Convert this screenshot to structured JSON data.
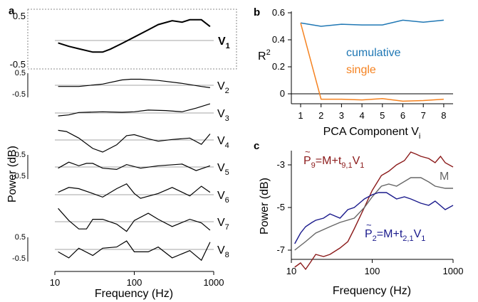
{
  "panels": {
    "a": {
      "label": "a",
      "ylabel": "Power (dB)",
      "xlabel": "Frequency (Hz)",
      "xticks": [
        "10",
        "100",
        "1000"
      ],
      "y_top_label": "0.5",
      "y_bottom_label": "-0.5"
    },
    "b": {
      "label": "b",
      "ylabel_main": "R",
      "ylabel_sup": "2",
      "xlabel_main": "PCA Component V",
      "xlabel_sub": "i",
      "yticks": [
        "0.6",
        "0.4",
        "0.2",
        "0"
      ],
      "xticks": [
        "1",
        "2",
        "3",
        "4",
        "5",
        "6",
        "7",
        "8"
      ]
    },
    "c": {
      "label": "c",
      "ylabel": "Power (dB)",
      "xlabel": "Frequency (Hz)",
      "yticks": [
        "-3",
        "-5",
        "-7"
      ],
      "xticks": [
        "10",
        "100",
        "1000"
      ],
      "annotation_p9": {
        "p": "P",
        "sub1": "9",
        "eq": "=M+t",
        "sub2": "9,1",
        "v": "V",
        "sub3": "1"
      },
      "annotation_m": "M",
      "annotation_p2": {
        "p": "P",
        "sub1": "2",
        "eq": "=M+t",
        "sub2": "2,1",
        "v": "V",
        "sub3": "1"
      }
    }
  },
  "colors": {
    "blue": "#1f77b4",
    "orange": "#f58220",
    "darkred": "#8b1a1a",
    "navy": "#1a1a8c",
    "gray": "#666666"
  },
  "chart_data": [
    {
      "type": "line",
      "panel": "a",
      "x_scale": "log",
      "xlim": [
        10,
        1000
      ],
      "ylim": [
        -0.5,
        0.5
      ],
      "series": [
        {
          "name": "V1",
          "name_main": "V",
          "name_sub": "1",
          "x": [
            11,
            15,
            20,
            30,
            40,
            50,
            70,
            100,
            150,
            200,
            300,
            400,
            500,
            700,
            900
          ],
          "y": [
            -0.05,
            -0.12,
            -0.17,
            -0.24,
            -0.24,
            -0.18,
            -0.06,
            0.07,
            0.22,
            0.33,
            0.41,
            0.38,
            0.43,
            0.43,
            0.29
          ]
        },
        {
          "name": "V2",
          "name_main": "V",
          "name_sub": "2",
          "x": [
            11,
            20,
            40,
            70,
            90,
            120,
            200,
            400,
            700,
            900
          ],
          "y": [
            -0.05,
            -0.05,
            0.05,
            0.22,
            0.25,
            0.25,
            0.2,
            0.08,
            -0.05,
            -0.1
          ]
        },
        {
          "name": "V3",
          "name_main": "V",
          "name_sub": "3",
          "x": [
            11,
            15,
            20,
            40,
            70,
            100,
            150,
            250,
            400,
            600,
            900
          ],
          "y": [
            -0.12,
            -0.08,
            0.02,
            0.05,
            0.03,
            0.05,
            0.12,
            0.1,
            0.05,
            0.2,
            0.38
          ]
        },
        {
          "name": "V4",
          "name_main": "V",
          "name_sub": "4",
          "x": [
            11,
            14,
            20,
            30,
            40,
            60,
            80,
            100,
            150,
            200,
            300,
            500,
            700,
            900
          ],
          "y": [
            0.4,
            0.35,
            0.08,
            -0.35,
            -0.5,
            -0.2,
            0.18,
            0.22,
            0.05,
            -0.05,
            0.02,
            0.08,
            -0.18,
            0.25
          ]
        },
        {
          "name": "V5",
          "name_main": "V",
          "name_sub": "5",
          "x": [
            11,
            15,
            20,
            25,
            30,
            40,
            60,
            80,
            120,
            200,
            400,
            600,
            900
          ],
          "y": [
            -0.05,
            0.2,
            0.05,
            0.15,
            0.15,
            -0.05,
            -0.1,
            0.1,
            -0.05,
            0.05,
            0.12,
            -0.15,
            0.05
          ]
        },
        {
          "name": "V6",
          "name_main": "V",
          "name_sub": "6",
          "x": [
            11,
            15,
            20,
            30,
            40,
            60,
            80,
            100,
            120,
            200,
            300,
            500,
            700,
            900
          ],
          "y": [
            0.1,
            0.3,
            0.25,
            0.05,
            -0.1,
            0.25,
            0.45,
            0.05,
            -0.15,
            0.05,
            0.3,
            -0.05,
            0.35,
            0.1
          ]
        },
        {
          "name": "V7",
          "name_main": "V",
          "name_sub": "7",
          "x": [
            11,
            15,
            20,
            25,
            30,
            40,
            60,
            80,
            100,
            150,
            200,
            300,
            500,
            700,
            900
          ],
          "y": [
            0.55,
            0.05,
            -0.3,
            -0.3,
            0.1,
            0.1,
            -0.1,
            -0.4,
            0.05,
            0.35,
            0.1,
            -0.2,
            0.1,
            -0.05,
            -0.35
          ]
        },
        {
          "name": "V8",
          "name_main": "V",
          "name_sub": "8",
          "x": [
            11,
            15,
            20,
            30,
            40,
            60,
            80,
            100,
            150,
            200,
            300,
            500,
            700,
            900
          ],
          "y": [
            -0.1,
            -0.35,
            0.05,
            -0.25,
            0.05,
            0.1,
            0.35,
            -0.1,
            -0.1,
            0.1,
            -0.35,
            -0.05,
            -0.45,
            0.3
          ]
        }
      ]
    },
    {
      "type": "line",
      "panel": "b",
      "x": [
        1,
        2,
        3,
        4,
        5,
        6,
        7,
        8
      ],
      "ylim": [
        -0.05,
        0.6
      ],
      "series": [
        {
          "name": "cumulative",
          "color": "#1f77b4",
          "values": [
            0.525,
            0.5,
            0.515,
            0.51,
            0.51,
            0.545,
            0.53,
            0.545
          ]
        },
        {
          "name": "single",
          "color": "#f58220",
          "values": [
            0.525,
            -0.04,
            -0.04,
            -0.045,
            -0.035,
            -0.055,
            -0.05,
            -0.04
          ]
        }
      ]
    },
    {
      "type": "line",
      "panel": "c",
      "x_scale": "log",
      "xlim": [
        10,
        1000
      ],
      "ylim": [
        -8,
        -2.2
      ],
      "series": [
        {
          "name": "P9",
          "color": "#8b1a1a",
          "x": [
            11,
            13,
            15,
            17,
            20,
            25,
            30,
            40,
            50,
            60,
            80,
            100,
            130,
            160,
            200,
            250,
            300,
            350,
            400,
            500,
            600,
            700,
            800,
            1000
          ],
          "y": [
            -7.8,
            -7.6,
            -7.9,
            -7.6,
            -7.2,
            -7.3,
            -7.2,
            -6.9,
            -6.6,
            -6.0,
            -5.0,
            -4.2,
            -3.5,
            -3.3,
            -3.0,
            -2.8,
            -2.4,
            -2.5,
            -2.6,
            -2.7,
            -2.9,
            -2.6,
            -2.9,
            -3.1
          ]
        },
        {
          "name": "M",
          "color": "#666666",
          "x": [
            11,
            15,
            20,
            30,
            40,
            60,
            80,
            100,
            130,
            160,
            200,
            300,
            400,
            500,
            600,
            800,
            1000
          ],
          "y": [
            -7.0,
            -6.6,
            -6.2,
            -5.9,
            -5.7,
            -5.5,
            -5.0,
            -4.5,
            -4.0,
            -3.9,
            -4.0,
            -3.6,
            -3.6,
            -3.8,
            -4.0,
            -4.1,
            -4.1
          ]
        },
        {
          "name": "P2",
          "color": "#1a1a8c",
          "x": [
            11,
            13,
            15,
            18,
            20,
            25,
            30,
            40,
            50,
            60,
            80,
            100,
            120,
            150,
            200,
            250,
            300,
            400,
            500,
            600,
            800,
            1000
          ],
          "y": [
            -6.7,
            -6.2,
            -5.9,
            -5.7,
            -5.6,
            -5.5,
            -5.3,
            -5.5,
            -5.1,
            -5.0,
            -4.6,
            -4.4,
            -4.3,
            -4.3,
            -4.6,
            -4.5,
            -4.6,
            -4.8,
            -4.9,
            -4.7,
            -5.1,
            -4.9
          ]
        }
      ]
    }
  ]
}
